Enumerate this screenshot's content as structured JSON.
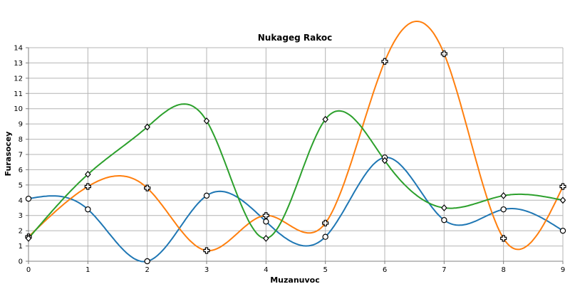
{
  "chart_data": {
    "type": "line",
    "title": "Nukageg Rakoc",
    "xlabel": "Muzanuvoc",
    "ylabel": "Furasocey",
    "xlim": [
      0,
      9
    ],
    "ylim": [
      0,
      14
    ],
    "x_ticks": [
      0,
      1,
      2,
      3,
      4,
      5,
      6,
      7,
      8,
      9
    ],
    "y_ticks": [
      0,
      1,
      2,
      3,
      4,
      5,
      6,
      7,
      8,
      9,
      10,
      11,
      12,
      13,
      14
    ],
    "grid": true,
    "smooth": true,
    "x": [
      0,
      1,
      2,
      3,
      4,
      5,
      6,
      7,
      8,
      9
    ],
    "series": [
      {
        "color": "#1f77b4",
        "marker": "circle",
        "values": [
          4.1,
          3.4,
          0.0,
          4.3,
          2.6,
          1.6,
          6.8,
          2.7,
          3.4,
          2.0
        ]
      },
      {
        "color": "#ff7f0e",
        "marker": "plus",
        "values": [
          1.6,
          4.9,
          4.8,
          0.7,
          3.0,
          2.5,
          13.1,
          13.6,
          1.5,
          4.9
        ]
      },
      {
        "color": "#2ca02c",
        "marker": "diamond",
        "values": [
          1.5,
          5.7,
          8.8,
          9.2,
          1.5,
          9.3,
          6.6,
          3.5,
          4.3,
          4.0
        ]
      }
    ]
  }
}
